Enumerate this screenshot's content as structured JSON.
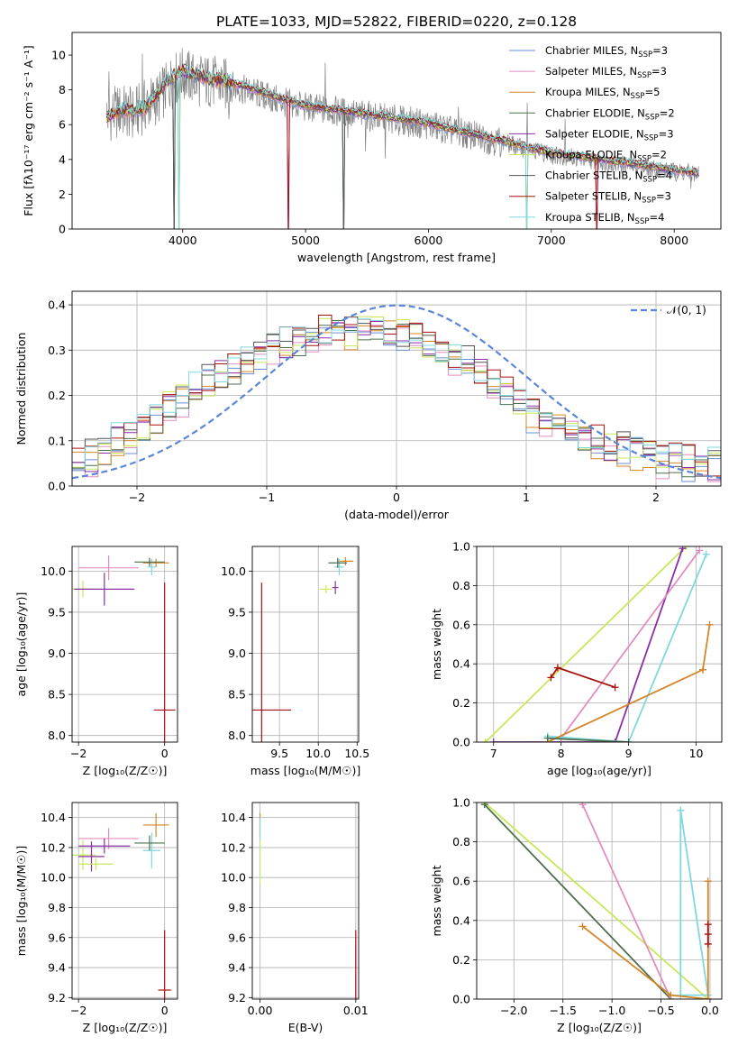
{
  "figure": {
    "title": "PLATE=1033, MJD=52822, FIBERID=0220, z=0.128"
  },
  "colors": {
    "chabrier_miles": "#6a8fd6",
    "salpeter_miles": "#e28dc0",
    "kroupa_miles": "#d4862a",
    "chabrier_elodie": "#4f6f4f",
    "salpeter_elodie": "#8b2fa6",
    "kroupa_elodie": "#c6e85a",
    "chabrier_stelib": "#555555",
    "salpeter_stelib": "#a81010",
    "kroupa_stelib": "#7fd8de",
    "data": "#808080",
    "gaussian": "#5b86d8",
    "grid": "#b0b0b0"
  },
  "chart_data": [
    {
      "id": "spectrum",
      "type": "line",
      "title": "PLATE=1033, MJD=52822, FIBERID=0220, z=0.128",
      "xlabel": "wavelength [Angstrom, rest frame]",
      "ylabel": "Flux [fλ10⁻¹⁷ erg cm⁻² s⁻¹ A⁻¹]",
      "xlim": [
        3100,
        8380
      ],
      "ylim": [
        0,
        11.3
      ],
      "xticks": [
        4000,
        5000,
        6000,
        7000,
        8000
      ],
      "yticks": [
        0,
        2,
        4,
        6,
        8,
        10
      ],
      "grid": false,
      "legend_position": "top-right",
      "legend": [
        {
          "label": "Chabrier MILES, N",
          "sub": "SSP",
          "suffix": "=3",
          "color_key": "chabrier_miles"
        },
        {
          "label": "Salpeter MILES, N",
          "sub": "SSP",
          "suffix": "=3",
          "color_key": "salpeter_miles"
        },
        {
          "label": "Kroupa MILES, N",
          "sub": "SSP",
          "suffix": "=5",
          "color_key": "kroupa_miles"
        },
        {
          "label": "Chabrier ELODIE, N",
          "sub": "SSP",
          "suffix": "=2",
          "color_key": "chabrier_elodie"
        },
        {
          "label": "Salpeter ELODIE, N",
          "sub": "SSP",
          "suffix": "=3",
          "color_key": "salpeter_elodie"
        },
        {
          "label": "Kroupa ELODIE, N",
          "sub": "SSP",
          "suffix": "=2",
          "color_key": "kroupa_elodie"
        },
        {
          "label": "Chabrier STELIB, N",
          "sub": "SSP",
          "suffix": "=4",
          "color_key": "chabrier_stelib"
        },
        {
          "label": "Salpeter STELIB, N",
          "sub": "SSP",
          "suffix": "=3",
          "color_key": "salpeter_stelib"
        },
        {
          "label": "Kroupa STELIB, N",
          "sub": "SSP",
          "suffix": "=4",
          "color_key": "kroupa_stelib"
        }
      ],
      "model_continuum": {
        "x": [
          3380,
          3500,
          3600,
          3700,
          3800,
          3900,
          4000,
          4100,
          4200,
          4400,
          4600,
          4800,
          5000,
          5200,
          5400,
          5600,
          5800,
          6000,
          6200,
          6400,
          6600,
          6800,
          7000,
          7200,
          7400,
          7600,
          7800,
          8000,
          8200
        ],
        "y": [
          6.4,
          6.9,
          6.8,
          7.0,
          7.8,
          8.7,
          9.1,
          8.9,
          8.7,
          8.4,
          8.0,
          7.5,
          7.1,
          6.9,
          6.7,
          6.5,
          6.3,
          6.1,
          5.7,
          5.4,
          5.1,
          4.7,
          4.4,
          4.2,
          4.0,
          3.8,
          3.6,
          3.4,
          3.2
        ]
      },
      "data_spectrum": {
        "x": [
          3380,
          3500,
          3600,
          3700,
          3800,
          3900,
          4000,
          4100,
          4200,
          4400,
          4600,
          4800,
          5000,
          5200,
          5400,
          5600,
          5800,
          6000,
          6200,
          6400,
          6600,
          6800,
          7000,
          7200,
          7400,
          7600,
          7800,
          8000,
          8200
        ],
        "y": [
          6.5,
          6.8,
          6.6,
          7.1,
          7.5,
          8.4,
          8.9,
          8.6,
          8.5,
          8.2,
          7.8,
          7.3,
          7.0,
          6.8,
          6.6,
          6.4,
          6.2,
          6.0,
          5.6,
          5.3,
          5.0,
          4.6,
          4.3,
          4.1,
          3.9,
          3.7,
          3.5,
          3.3,
          3.2
        ]
      },
      "absorption_dips": [
        3934,
        3969,
        4861,
        5310,
        6800,
        7370
      ]
    },
    {
      "id": "residuals",
      "type": "step",
      "xlabel": "(data-model)/error",
      "ylabel": "Normed distribution",
      "xlim": [
        -2.5,
        2.5
      ],
      "ylim": [
        0,
        0.43
      ],
      "xticks": [
        -2,
        -1,
        0,
        1,
        2
      ],
      "yticks": [
        0.0,
        0.1,
        0.2,
        0.3,
        0.4
      ],
      "grid": true,
      "legend_position": "top-right",
      "legend": [
        {
          "label": "𝒩(0, 1)",
          "color_key": "gaussian"
        }
      ],
      "bin_width": 0.1,
      "envelope": {
        "x": [
          -2.5,
          -2.0,
          -1.5,
          -1.0,
          -0.5,
          0.0,
          0.5,
          1.0,
          1.5,
          2.0,
          2.5
        ],
        "y": [
          0.04,
          0.12,
          0.22,
          0.3,
          0.34,
          0.34,
          0.28,
          0.17,
          0.1,
          0.06,
          0.04
        ]
      },
      "gaussian": {
        "mu": 0,
        "sigma": 1
      }
    },
    {
      "id": "age_vs_z",
      "type": "scatter",
      "xlabel": "Z [log₁₀(Z/Z☉)]",
      "ylabel": "age  [log₁₀(age/yr)]",
      "xlim": [
        -2.15,
        0.3
      ],
      "ylim": [
        7.92,
        10.3
      ],
      "xticks": [
        -2,
        0
      ],
      "yticks": [
        8.0,
        8.5,
        9.0,
        9.5,
        10.0
      ],
      "grid": true,
      "points": [
        {
          "x": -0.2,
          "y": 10.1,
          "xerr": 0.3,
          "yerr": 0.05,
          "color_key": "kroupa_miles"
        },
        {
          "x": -1.3,
          "y": 10.04,
          "xerr": 0.7,
          "yerr": 0.15,
          "color_key": "salpeter_miles"
        },
        {
          "x": -0.3,
          "y": 10.05,
          "xerr": 0.1,
          "yerr": 0.1,
          "color_key": "kroupa_stelib"
        },
        {
          "x": -0.35,
          "y": 10.11,
          "xerr": 0.35,
          "yerr": 0.05,
          "color_key": "chabrier_elodie"
        },
        {
          "x": -1.9,
          "y": 9.78,
          "xerr": 0.3,
          "yerr": 0.1,
          "color_key": "kroupa_elodie"
        },
        {
          "x": -1.4,
          "y": 9.78,
          "xerr": 0.7,
          "yerr": 0.2,
          "color_key": "salpeter_elodie"
        },
        {
          "x": 0.0,
          "y": 8.31,
          "xerr": 0.25,
          "yerr": 1.55,
          "color_key": "salpeter_stelib"
        }
      ]
    },
    {
      "id": "age_vs_mass",
      "type": "scatter",
      "xlabel": "mass [log₁₀(M/M☉)]",
      "xlim": [
        9.15,
        10.52
      ],
      "ylim": [
        7.92,
        10.3
      ],
      "xticks": [
        9.5,
        10.0,
        10.5
      ],
      "yticks": [
        8.0,
        8.5,
        9.0,
        9.5,
        10.0
      ],
      "grid": true,
      "points": [
        {
          "x": 10.35,
          "y": 10.12,
          "xerr": 0.1,
          "yerr": 0.05,
          "color_key": "kroupa_miles"
        },
        {
          "x": 10.27,
          "y": 10.05,
          "xerr": 0.06,
          "yerr": 0.1,
          "color_key": "kroupa_stelib"
        },
        {
          "x": 10.25,
          "y": 10.1,
          "xerr": 0.12,
          "yerr": 0.06,
          "color_key": "chabrier_elodie"
        },
        {
          "x": 10.1,
          "y": 9.78,
          "xerr": 0.08,
          "yerr": 0.05,
          "color_key": "kroupa_elodie"
        },
        {
          "x": 10.22,
          "y": 9.8,
          "xerr": 0.04,
          "yerr": 0.08,
          "color_key": "salpeter_elodie"
        },
        {
          "x": 9.27,
          "y": 8.31,
          "xerr": 0.38,
          "yerr": 1.55,
          "color_key": "salpeter_stelib"
        }
      ]
    },
    {
      "id": "weight_vs_age",
      "type": "line",
      "xlabel": "age  [log₁₀(age/yr)]",
      "ylabel": "mass weight",
      "xlim": [
        6.75,
        10.38
      ],
      "ylim": [
        0,
        1.0
      ],
      "xticks": [
        7,
        8,
        9,
        10
      ],
      "yticks": [
        0.0,
        0.2,
        0.4,
        0.6,
        0.8,
        1.0
      ],
      "grid": true,
      "series": [
        {
          "color_key": "kroupa_elodie",
          "x": [
            6.88,
            9.85,
            6.88
          ],
          "y": [
            0.0,
            1.0,
            0.0
          ]
        },
        {
          "color_key": "salpeter_elodie",
          "x": [
            7.0,
            8.8,
            9.8
          ],
          "y": [
            0.0,
            0.0,
            0.99
          ]
        },
        {
          "color_key": "salpeter_miles",
          "x": [
            8.0,
            10.05,
            8.0
          ],
          "y": [
            0.02,
            0.98,
            0.02
          ]
        },
        {
          "color_key": "kroupa_stelib",
          "x": [
            7.8,
            9.0,
            10.15,
            9.0,
            7.8
          ],
          "y": [
            0.03,
            0.0,
            0.96,
            0.0,
            0.03
          ]
        },
        {
          "color_key": "kroupa_miles",
          "x": [
            7.8,
            10.1,
            10.2,
            10.1,
            7.8
          ],
          "y": [
            0.0,
            0.37,
            0.6,
            0.37,
            0.0
          ]
        },
        {
          "color_key": "salpeter_stelib",
          "x": [
            7.85,
            7.95,
            8.8
          ],
          "y": [
            0.33,
            0.38,
            0.28
          ]
        },
        {
          "color_key": "chabrier_elodie",
          "x": [
            7.8,
            9.0
          ],
          "y": [
            0.02,
            0.0
          ]
        }
      ]
    },
    {
      "id": "mass_vs_z",
      "type": "scatter",
      "xlabel": "Z [log₁₀(Z/Z☉)]",
      "ylabel": "mass [log₁₀(M/M☉)]",
      "xlim": [
        -2.15,
        0.3
      ],
      "ylim": [
        9.19,
        10.5
      ],
      "xticks": [
        -2,
        0
      ],
      "yticks": [
        9.2,
        9.4,
        9.6,
        9.8,
        10.0,
        10.2,
        10.4
      ],
      "grid": true,
      "points": [
        {
          "x": -0.2,
          "y": 10.35,
          "xerr": 0.3,
          "yerr": 0.08,
          "color_key": "kroupa_miles"
        },
        {
          "x": -1.3,
          "y": 10.26,
          "xerr": 0.7,
          "yerr": 0.07,
          "color_key": "salpeter_miles"
        },
        {
          "x": -0.3,
          "y": 10.18,
          "xerr": 0.2,
          "yerr": 0.12,
          "color_key": "kroupa_stelib"
        },
        {
          "x": -0.35,
          "y": 10.23,
          "xerr": 0.35,
          "yerr": 0.05,
          "color_key": "chabrier_elodie"
        },
        {
          "x": -1.9,
          "y": 10.15,
          "xerr": 0.3,
          "yerr": 0.1,
          "color_key": "kroupa_elodie"
        },
        {
          "x": -1.4,
          "y": 10.21,
          "xerr": 0.6,
          "yerr": 0.05,
          "color_key": "salpeter_elodie"
        },
        {
          "x": -1.7,
          "y": 10.14,
          "xerr": 0.3,
          "yerr": 0.1,
          "color_key": "salpeter_elodie"
        },
        {
          "x": -1.6,
          "y": 10.09,
          "xerr": 0.4,
          "yerr": 0.04,
          "color_key": "kroupa_elodie"
        },
        {
          "x": 0.0,
          "y": 9.25,
          "xerr": 0.15,
          "yerr": 0.4,
          "color_key": "salpeter_stelib"
        }
      ]
    },
    {
      "id": "mass_vs_ebv",
      "type": "scatter",
      "xlabel": "E(B-V)",
      "xlim": [
        -0.0008,
        0.0103
      ],
      "ylim": [
        9.19,
        10.5
      ],
      "xticks": [
        0.0,
        0.01
      ],
      "yticks": [
        9.2,
        9.4,
        9.6,
        9.8,
        10.0,
        10.2,
        10.4
      ],
      "grid": true,
      "points": [
        {
          "x": 0.0,
          "y": 10.35,
          "xerr": 0.0,
          "yerr": 0.08,
          "color_key": "kroupa_miles"
        },
        {
          "x": 0.0,
          "y": 10.2,
          "xerr": 0.0,
          "yerr": 0.2,
          "color_key": "kroupa_stelib"
        },
        {
          "x": 0.0,
          "y": 10.1,
          "xerr": 0.0,
          "yerr": 0.15,
          "color_key": "kroupa_elodie"
        },
        {
          "x": 0.01,
          "y": 9.35,
          "xerr": 0.0,
          "yerr": 0.3,
          "color_key": "salpeter_stelib"
        }
      ]
    },
    {
      "id": "weight_vs_z",
      "type": "line",
      "xlabel": "Z [log₁₀(Z/Z☉)]",
      "ylabel": "mass weight",
      "xlim": [
        -2.38,
        0.12
      ],
      "ylim": [
        0,
        1.0
      ],
      "xticks": [
        -2.0,
        -1.5,
        -1.0,
        -0.5,
        0.0
      ],
      "yticks": [
        0.0,
        0.2,
        0.4,
        0.6,
        0.8,
        1.0
      ],
      "grid": true,
      "series": [
        {
          "color_key": "kroupa_elodie",
          "x": [
            -2.3,
            -0.02,
            -2.3
          ],
          "y": [
            1.0,
            0.0,
            1.0
          ]
        },
        {
          "color_key": "chabrier_elodie",
          "x": [
            -2.3,
            -0.4
          ],
          "y": [
            0.99,
            0.0
          ]
        },
        {
          "color_key": "salpeter_miles",
          "x": [
            -1.3,
            -0.4,
            -1.3
          ],
          "y": [
            0.99,
            0.0,
            0.99
          ]
        },
        {
          "color_key": "kroupa_stelib",
          "x": [
            -0.3,
            -0.3,
            -0.02,
            -0.3
          ],
          "y": [
            0.96,
            0.02,
            0.02,
            0.96
          ]
        },
        {
          "color_key": "kroupa_miles",
          "x": [
            -1.3,
            -0.4,
            -0.02,
            -0.02
          ],
          "y": [
            0.37,
            0.02,
            0.0,
            0.6
          ]
        },
        {
          "color_key": "salpeter_stelib",
          "x": [
            -0.02,
            -0.02,
            -0.02
          ],
          "y": [
            0.28,
            0.33,
            0.38
          ]
        }
      ]
    }
  ]
}
